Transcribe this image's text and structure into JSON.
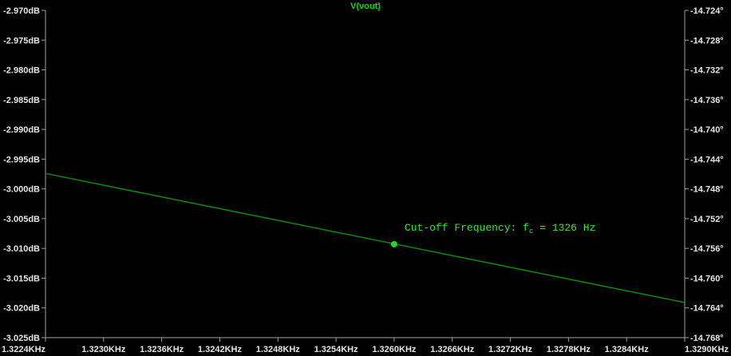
{
  "chart_data": {
    "type": "line",
    "title": "V(vout)",
    "x_ticks": [
      "1.3224KHz",
      "1.3230KHz",
      "1.3236KHz",
      "1.3242KHz",
      "1.3248KHz",
      "1.3254KHz",
      "1.3260KHz",
      "1.3266KHz",
      "1.3272KHz",
      "1.3278KHz",
      "1.3284KHz",
      "1.3290KHz"
    ],
    "y_left_ticks": [
      "-2.970dB",
      "-2.975dB",
      "-2.980dB",
      "-2.985dB",
      "-2.990dB",
      "-2.995dB",
      "-3.000dB",
      "-3.005dB",
      "-3.010dB",
      "-3.015dB",
      "-3.020dB",
      "-3.025dB"
    ],
    "y_right_ticks": [
      "-14.724°",
      "-14.728°",
      "-14.732°",
      "-14.736°",
      "-14.740°",
      "-14.744°",
      "-14.748°",
      "-14.752°",
      "-14.756°",
      "-14.760°",
      "-14.764°",
      "-14.768°"
    ],
    "xlim": [
      1322.4,
      1329.0
    ],
    "ylim": [
      -3.025,
      -2.97
    ],
    "y2lim": [
      -14.768,
      -14.724
    ],
    "series": [
      {
        "x": [
          1322.4,
          1329.0
        ],
        "y": [
          -2.9974,
          -3.0191
        ],
        "color": "#0b8a0b"
      }
    ],
    "marker": {
      "x": 1326.0,
      "y": -3.0093,
      "color": "#2bd12b"
    },
    "annotation": {
      "prefix": "Cut-off Frequency: f",
      "subscript": "c",
      "suffix": " = 1326 Hz",
      "color": "#3fe23f"
    }
  }
}
